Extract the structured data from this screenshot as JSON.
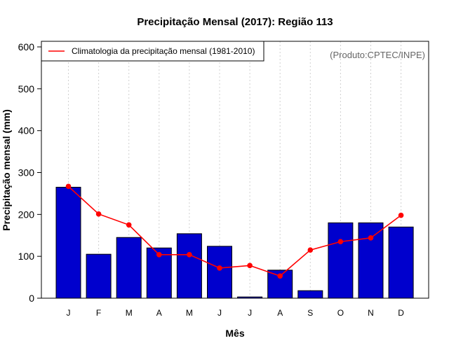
{
  "chart_data": {
    "type": "bar",
    "title": "Precipitação Mensal (2017): Região 113",
    "xlabel": "Mês",
    "ylabel": "Precipitação mensal (mm)",
    "categories": [
      "J",
      "F",
      "M",
      "A",
      "M",
      "J",
      "J",
      "A",
      "S",
      "O",
      "N",
      "D"
    ],
    "ylim": [
      0,
      600
    ],
    "yticks": [
      0,
      100,
      200,
      300,
      400,
      500,
      600
    ],
    "grid": "vertical dotted",
    "series": [
      {
        "name": "Precipitação mensal 2017",
        "type": "bar",
        "color": "#0000CD",
        "values": [
          265,
          105,
          145,
          120,
          154,
          124,
          3,
          67,
          18,
          180,
          180,
          170
        ]
      },
      {
        "name": "Climatologia da precipitação mensal (1981-2010)",
        "type": "line",
        "color": "#FF0000",
        "values": [
          267,
          201,
          175,
          104,
          104,
          72,
          78,
          53,
          115,
          135,
          144,
          198
        ]
      }
    ],
    "legend": {
      "position": "top-left",
      "label": "Climatologia da precipitação mensal (1981-2010)"
    },
    "annotation": "(Produto:CPTEC/INPE)"
  }
}
